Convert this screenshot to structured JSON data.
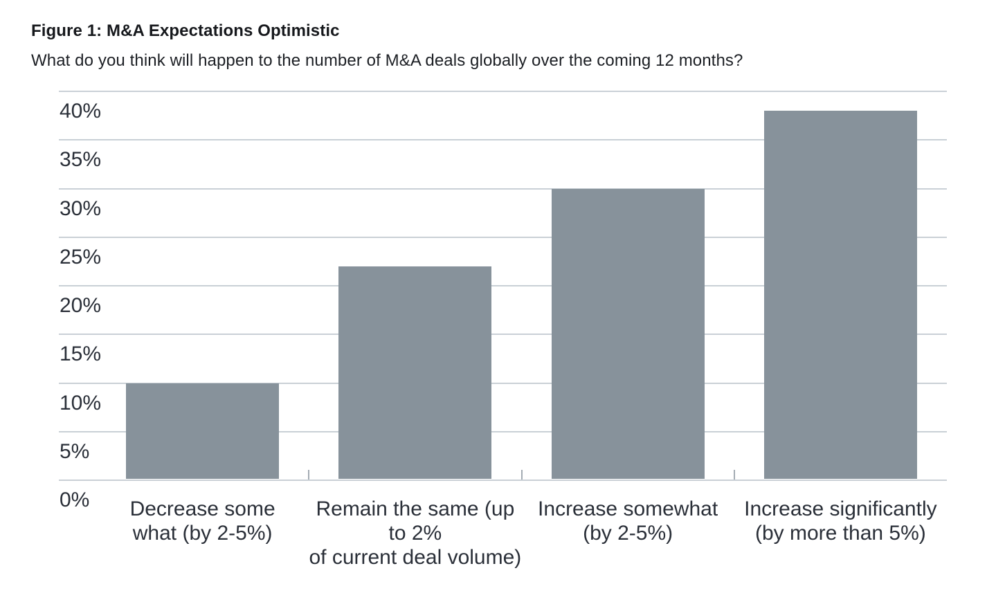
{
  "chart_data": {
    "type": "bar",
    "title": "Figure 1: M&A Expectations Optimistic",
    "subtitle": "What do you think will happen to the number of M&A deals globally over the coming 12 months?",
    "categories": [
      [
        "Decrease some",
        "what (by 2-5%)"
      ],
      [
        "Remain the same (up to 2%",
        "of current deal volume)"
      ],
      [
        "Increase somewhat",
        "(by 2-5%)"
      ],
      [
        "Increase significantly",
        "(by more than 5%)"
      ]
    ],
    "category_slugs": [
      "decrease-somewhat",
      "remain-the-same",
      "increase-somewhat",
      "increase-significantly"
    ],
    "values": [
      10,
      22,
      30,
      38
    ],
    "value_unit": "%",
    "xlabel": "",
    "ylabel": "",
    "ylim": [
      0,
      40
    ],
    "y_tick_step": 5,
    "y_tick_labels": [
      "0%",
      "5%",
      "10%",
      "15%",
      "20%",
      "25%",
      "30%",
      "35%",
      "40%"
    ],
    "grid": true,
    "legend": "none",
    "colors": {
      "bar": "#87929b",
      "gridline": "#c9d0d6",
      "axis_tick": "#a3abb3",
      "axis_text": "#2a2f38",
      "title_text": "#16181c"
    }
  }
}
